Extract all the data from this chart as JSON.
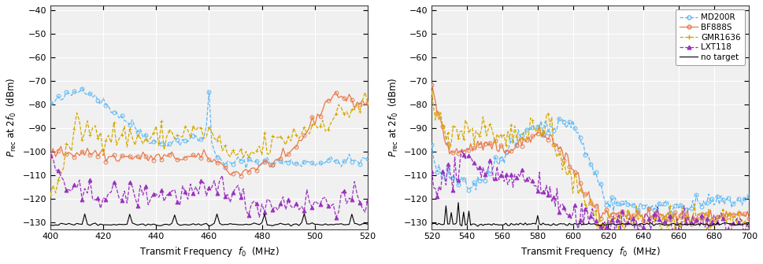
{
  "plot1": {
    "xlim": [
      400,
      520
    ],
    "ylim": [
      -133,
      -38
    ],
    "xlabel": "Transmit Frequency  $f_0$  (MHz)",
    "ylabel": "$P_{\\mathrm{rec}}$ at $2f_0$  (dBm)",
    "yticks": [
      -130,
      -120,
      -110,
      -100,
      -90,
      -80,
      -70,
      -60,
      -50,
      -40
    ],
    "xticks": [
      400,
      420,
      440,
      460,
      480,
      500,
      520
    ]
  },
  "plot2": {
    "xlim": [
      520,
      700
    ],
    "ylim": [
      -133,
      -38
    ],
    "xlabel": "Transmit Frequency  $f_0$  (MHz)",
    "ylabel": "$P_{\\mathrm{rec}}$ at $2f_0$  (dBm)",
    "yticks": [
      -130,
      -120,
      -110,
      -100,
      -90,
      -80,
      -70,
      -60,
      -50,
      -40
    ],
    "xticks": [
      520,
      540,
      560,
      580,
      600,
      620,
      640,
      660,
      680,
      700
    ]
  },
  "colors": {
    "MD200R": "#5bb8f5",
    "BF888S": "#e8794a",
    "GMR1636": "#d4a800",
    "LXT118": "#9b30c0",
    "no_target": "#000000"
  },
  "legend_labels": [
    "MD200R",
    "BF888S",
    "GMR1636",
    "LXT118",
    "no target"
  ],
  "bg_color": "#f0f0f0",
  "grid_color": "#ffffff",
  "marker_size": 3.5,
  "line_width": 0.9,
  "marker_every": 3
}
